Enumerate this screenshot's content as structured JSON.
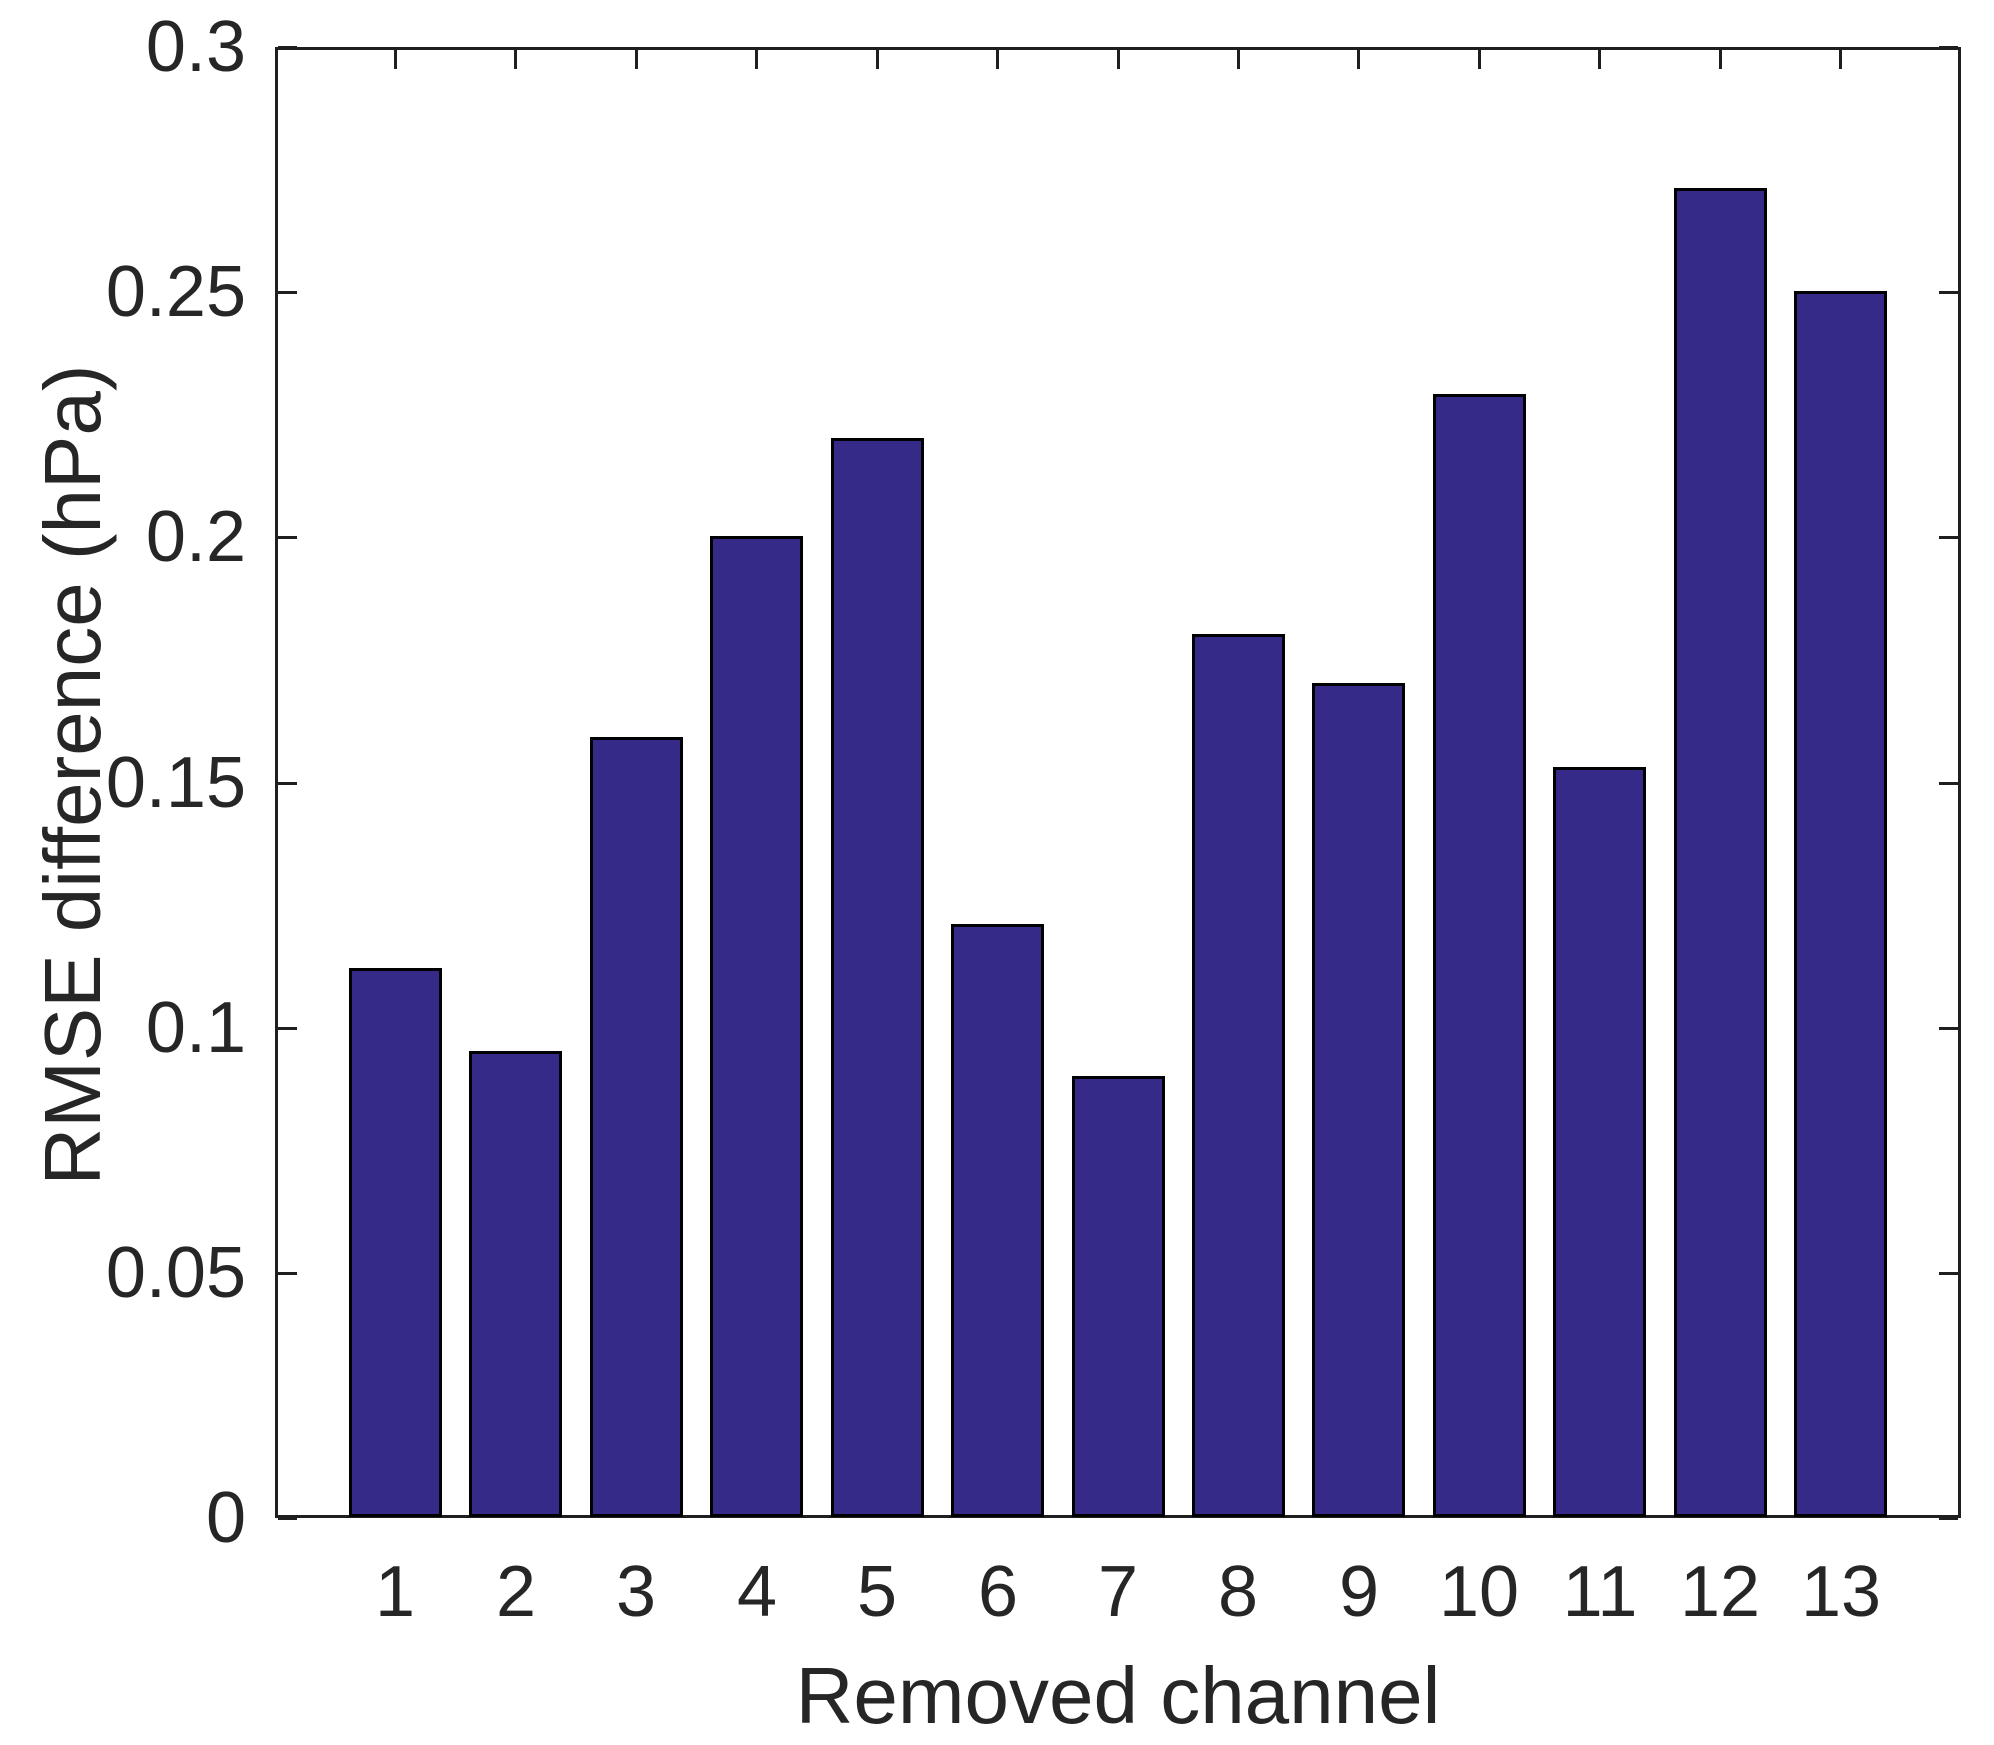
{
  "figure": {
    "background": "#ffffff"
  },
  "chart_data": {
    "type": "bar",
    "title": "",
    "xlabel": "Removed channel",
    "ylabel": "RMSE difference (hPa)",
    "categories": [
      "1",
      "2",
      "3",
      "4",
      "5",
      "6",
      "7",
      "8",
      "9",
      "10",
      "11",
      "12",
      "13"
    ],
    "values": [
      0.112,
      0.095,
      0.159,
      0.2,
      0.22,
      0.121,
      0.09,
      0.18,
      0.17,
      0.229,
      0.153,
      0.271,
      0.25
    ],
    "ylim": [
      0,
      0.3
    ],
    "xlim": [
      0,
      14
    ],
    "ytick_values": [
      0,
      0.05,
      0.1,
      0.15,
      0.2,
      0.25,
      0.3
    ],
    "ytick_labels": [
      "0",
      "0.05",
      "0.1",
      "0.15",
      "0.2",
      "0.25",
      "0.3"
    ],
    "grid": false,
    "legend": null,
    "bar_color": "#352a87",
    "bar_edge_color": "#000000",
    "axis_color": "#1f1f1f",
    "text_color": "#262626",
    "bar_width_fraction": 0.72
  }
}
